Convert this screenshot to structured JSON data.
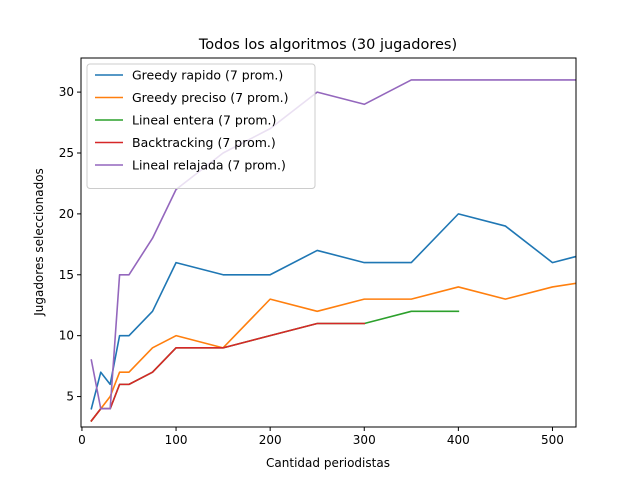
{
  "chart_data": {
    "type": "line",
    "title": "Todos los algoritmos (30 jugadores)",
    "xlabel": "Cantidad periodistas",
    "ylabel": "Jugadores seleccionados",
    "xlim": [
      -1,
      525
    ],
    "ylim": [
      2.5,
      32.8
    ],
    "xticks": [
      0,
      100,
      200,
      300,
      400,
      500
    ],
    "yticks": [
      5,
      10,
      15,
      20,
      25,
      30
    ],
    "grid": false,
    "legend_position": "top-left",
    "series": [
      {
        "name": "Greedy rapido  (7 prom.)",
        "color": "#1f77b4",
        "x": [
          10,
          20,
          30,
          40,
          50,
          75,
          100,
          150,
          200,
          250,
          300,
          350,
          400,
          450,
          500,
          525
        ],
        "y": [
          4,
          7,
          6,
          10,
          10,
          12,
          16,
          15,
          15,
          17,
          16,
          16,
          20,
          19,
          16,
          16.5
        ]
      },
      {
        "name": "Greedy preciso  (7 prom.)",
        "color": "#ff7f0e",
        "x": [
          10,
          20,
          30,
          40,
          50,
          75,
          100,
          150,
          200,
          250,
          300,
          350,
          400,
          450,
          500,
          525
        ],
        "y": [
          3,
          4,
          5,
          7,
          7,
          9,
          10,
          9,
          13,
          12,
          13,
          13,
          14,
          13,
          14,
          14.3
        ]
      },
      {
        "name": "Lineal entera  (7 prom.)",
        "color": "#2ca02c",
        "x": [
          10,
          20,
          30,
          40,
          50,
          75,
          100,
          150,
          200,
          250,
          300,
          350,
          400
        ],
        "y": [
          3,
          4,
          4,
          6,
          6,
          7,
          9,
          9,
          10,
          11,
          11,
          12,
          12
        ]
      },
      {
        "name": "Backtracking (7 prom.)",
        "color": "#d62728",
        "x": [
          10,
          20,
          30,
          40,
          50,
          75,
          100,
          150,
          200,
          250,
          300
        ],
        "y": [
          3,
          4,
          4,
          6,
          6,
          7,
          9,
          9,
          10,
          11,
          11
        ]
      },
      {
        "name": "Lineal relajada  (7 prom.)",
        "color": "#9467bd",
        "x": [
          10,
          20,
          30,
          40,
          50,
          75,
          100,
          150,
          200,
          250,
          300,
          350,
          400,
          450,
          500,
          525
        ],
        "y": [
          8,
          4,
          4,
          15,
          15,
          18,
          22,
          25,
          27,
          30,
          29,
          31,
          31,
          31,
          31,
          31
        ]
      }
    ]
  }
}
